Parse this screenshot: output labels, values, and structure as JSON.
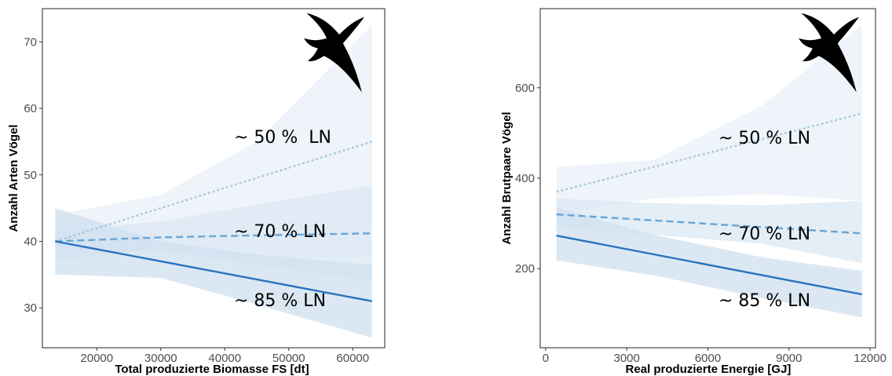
{
  "chart_data": [
    {
      "type": "line",
      "xlabel": "Total produzierte Biomasse FS [dt]",
      "ylabel": "Anzahl Arten Vögel",
      "xlim": [
        11500,
        65000
      ],
      "ylim": [
        24,
        75
      ],
      "xticks": [
        20000,
        30000,
        40000,
        50000,
        60000
      ],
      "yticks": [
        30,
        40,
        50,
        60,
        70
      ],
      "icon": "swift-bird-silhouette",
      "series": [
        {
          "annotation": "~ 50 %  LN",
          "color": "#a9c9e3",
          "style": "dotted",
          "band_color": "#eef4f9",
          "x": [
            13500,
            63000
          ],
          "y": [
            40.0,
            55.0
          ],
          "band_x": [
            13500,
            30000,
            45000,
            63000
          ],
          "band_upper": [
            44,
            47,
            55,
            72.5
          ],
          "band_lower": [
            37,
            39,
            37.5,
            37.5
          ]
        },
        {
          "annotation": "~ 70 % LN",
          "color": "#6aa6d6",
          "style": "dashed",
          "band_color": "#dbe8f3",
          "x": [
            13500,
            30000,
            45000,
            63000
          ],
          "y": [
            40.0,
            40.6,
            40.9,
            41.2
          ],
          "band_x": [
            13500,
            30000,
            45000,
            63000
          ],
          "band_upper": [
            41.5,
            43,
            45.5,
            48.5
          ],
          "band_lower": [
            38.5,
            38.5,
            36.5,
            34
          ]
        },
        {
          "annotation": "~ 85 % LN",
          "color": "#2a72c0",
          "style": "solid",
          "band_color": "#cfe0ef",
          "x": [
            13500,
            63000
          ],
          "y": [
            40.0,
            31.0
          ],
          "band_x": [
            13500,
            30000,
            45000,
            63000
          ],
          "band_upper": [
            45,
            40,
            38,
            36.5
          ],
          "band_lower": [
            35,
            34.5,
            30.5,
            25.5
          ]
        }
      ]
    },
    {
      "type": "line",
      "xlabel": "Real produzierte Energie [GJ]",
      "ylabel": "Anzahl Brutpaare Vögel",
      "xlim": [
        -200,
        12200
      ],
      "ylim": [
        25,
        775
      ],
      "xticks": [
        0,
        3000,
        6000,
        9000,
        12000
      ],
      "yticks": [
        200,
        400,
        600
      ],
      "icon": "swift-bird-silhouette",
      "series": [
        {
          "annotation": "~ 50 % LN",
          "color": "#a9c9e3",
          "style": "dotted",
          "band_color": "#eef4f9",
          "x": [
            400,
            11700
          ],
          "y": [
            370,
            543
          ],
          "band_x": [
            400,
            4000,
            8000,
            11700
          ],
          "band_upper": [
            425,
            440,
            560,
            740
          ],
          "band_lower": [
            320,
            355,
            365,
            350
          ]
        },
        {
          "annotation": "~ 70 % LN",
          "color": "#6aa6d6",
          "style": "dashed",
          "band_color": "#dbe8f3",
          "x": [
            400,
            11700
          ],
          "y": [
            320,
            278
          ],
          "band_x": [
            400,
            4000,
            8000,
            11700
          ],
          "band_upper": [
            355,
            345,
            340,
            350
          ],
          "band_lower": [
            290,
            275,
            255,
            212
          ]
        },
        {
          "annotation": "~ 85 % LN",
          "color": "#2a72c0",
          "style": "solid",
          "band_color": "#cfe0ef",
          "x": [
            400,
            11700
          ],
          "y": [
            273,
            143
          ],
          "band_x": [
            400,
            4000,
            8000,
            11700
          ],
          "band_upper": [
            335,
            275,
            225,
            195
          ],
          "band_lower": [
            218,
            185,
            135,
            92
          ]
        }
      ]
    }
  ]
}
